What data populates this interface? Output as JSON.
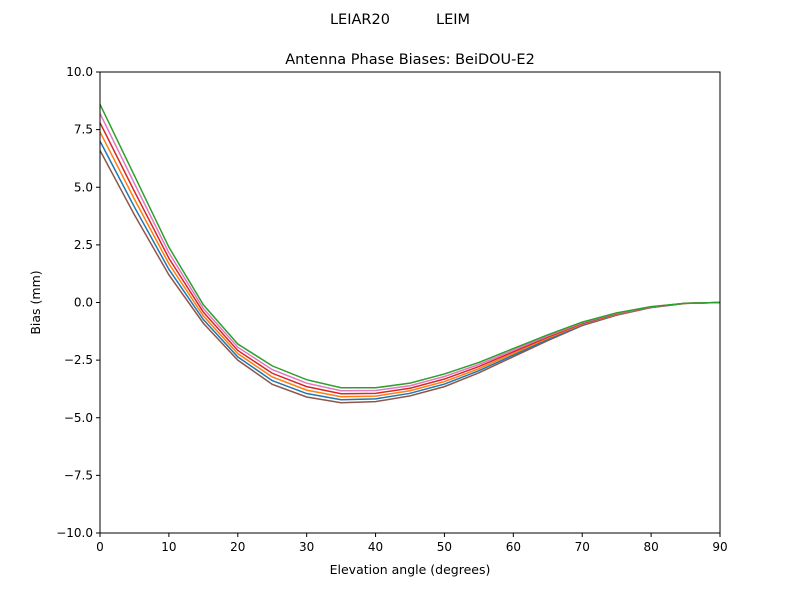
{
  "figure": {
    "suptitle": "LEIAR20          LEIM"
  },
  "chart_data": {
    "type": "line",
    "title": "Antenna Phase Biases: BeiDOU-E2",
    "xlabel": "Elevation angle (degrees)",
    "ylabel": "Bias (mm)",
    "xlim": [
      0,
      90
    ],
    "ylim": [
      -10,
      10
    ],
    "xticks": [
      0,
      10,
      20,
      30,
      40,
      50,
      60,
      70,
      80,
      90
    ],
    "yticks": [
      -10.0,
      -7.5,
      -5.0,
      -2.5,
      0.0,
      2.5,
      5.0,
      7.5,
      10.0
    ],
    "ytick_labels": [
      "−10.0",
      "−7.5",
      "−5.0",
      "−2.5",
      "0.0",
      "2.5",
      "5.0",
      "7.5",
      "10.0"
    ],
    "grid": false,
    "x": [
      0,
      5,
      10,
      15,
      20,
      25,
      30,
      35,
      40,
      45,
      50,
      55,
      60,
      65,
      70,
      75,
      80,
      85,
      90
    ],
    "series": [
      {
        "color": "#8c564b",
        "values": [
          6.6,
          3.8,
          1.2,
          -0.9,
          -2.5,
          -3.55,
          -4.1,
          -4.35,
          -4.3,
          -4.05,
          -3.65,
          -3.05,
          -2.35,
          -1.65,
          -1.0,
          -0.55,
          -0.22,
          -0.04,
          0
        ]
      },
      {
        "color": "#1f77b4",
        "values": [
          7.0,
          4.14,
          1.44,
          -0.74,
          -2.36,
          -3.39,
          -3.95,
          -4.22,
          -4.18,
          -3.94,
          -3.54,
          -2.96,
          -2.28,
          -1.6,
          -0.97,
          -0.53,
          -0.21,
          -0.04,
          0
        ]
      },
      {
        "color": "#ff7f0e",
        "values": [
          7.4,
          4.48,
          1.68,
          -0.58,
          -2.22,
          -3.23,
          -3.8,
          -4.09,
          -4.06,
          -3.83,
          -3.43,
          -2.87,
          -2.21,
          -1.55,
          -0.94,
          -0.51,
          -0.2,
          -0.04,
          0
        ]
      },
      {
        "color": "#d62728",
        "values": [
          7.8,
          4.82,
          1.92,
          -0.42,
          -2.08,
          -3.07,
          -3.65,
          -3.96,
          -3.94,
          -3.72,
          -3.32,
          -2.78,
          -2.14,
          -1.5,
          -0.91,
          -0.49,
          -0.2,
          -0.03,
          0
        ]
      },
      {
        "color": "#e377c2",
        "values": [
          8.2,
          5.16,
          2.16,
          -0.26,
          -1.94,
          -2.91,
          -3.5,
          -3.83,
          -3.82,
          -3.61,
          -3.21,
          -2.69,
          -2.07,
          -1.45,
          -0.88,
          -0.47,
          -0.19,
          -0.03,
          0
        ]
      },
      {
        "color": "#2ca02c",
        "values": [
          8.6,
          5.5,
          2.4,
          -0.1,
          -1.8,
          -2.75,
          -3.35,
          -3.7,
          -3.7,
          -3.5,
          -3.1,
          -2.6,
          -2.0,
          -1.4,
          -0.85,
          -0.45,
          -0.18,
          -0.03,
          0
        ]
      }
    ]
  }
}
